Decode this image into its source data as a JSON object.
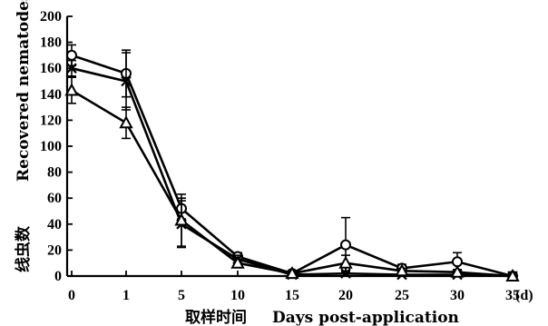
{
  "chart_data": {
    "type": "line",
    "title": "",
    "xlabel_cn": "取样时间",
    "xlabel": "Days post-application",
    "ylabel_cn": "线虫数",
    "ylabel": "Recovered nematodes",
    "x_unit": "(d)",
    "x_categories": [
      "0",
      "1",
      "5",
      "10",
      "15",
      "20",
      "25",
      "30",
      "35"
    ],
    "y_ticks": [
      "0",
      "20",
      "40",
      "60",
      "80",
      "100",
      "120",
      "140",
      "160",
      "180",
      "200"
    ],
    "ylim": [
      0,
      200
    ],
    "grid": false,
    "series": [
      {
        "marker": "circle",
        "values": [
          170,
          156,
          52,
          15,
          2,
          24,
          6,
          11,
          0
        ],
        "errors": [
          8,
          18,
          8,
          3,
          1,
          21,
          3,
          7,
          0
        ]
      },
      {
        "marker": "x",
        "values": [
          160,
          150,
          40,
          13,
          1,
          2,
          1,
          1,
          0
        ],
        "errors": [
          6,
          22,
          18,
          3,
          1,
          2,
          1,
          1,
          0
        ]
      },
      {
        "marker": "triangle",
        "values": [
          143,
          118,
          43,
          10,
          2,
          10,
          4,
          3,
          0
        ],
        "errors": [
          10,
          12,
          20,
          3,
          1,
          6,
          2,
          2,
          0
        ]
      }
    ]
  }
}
